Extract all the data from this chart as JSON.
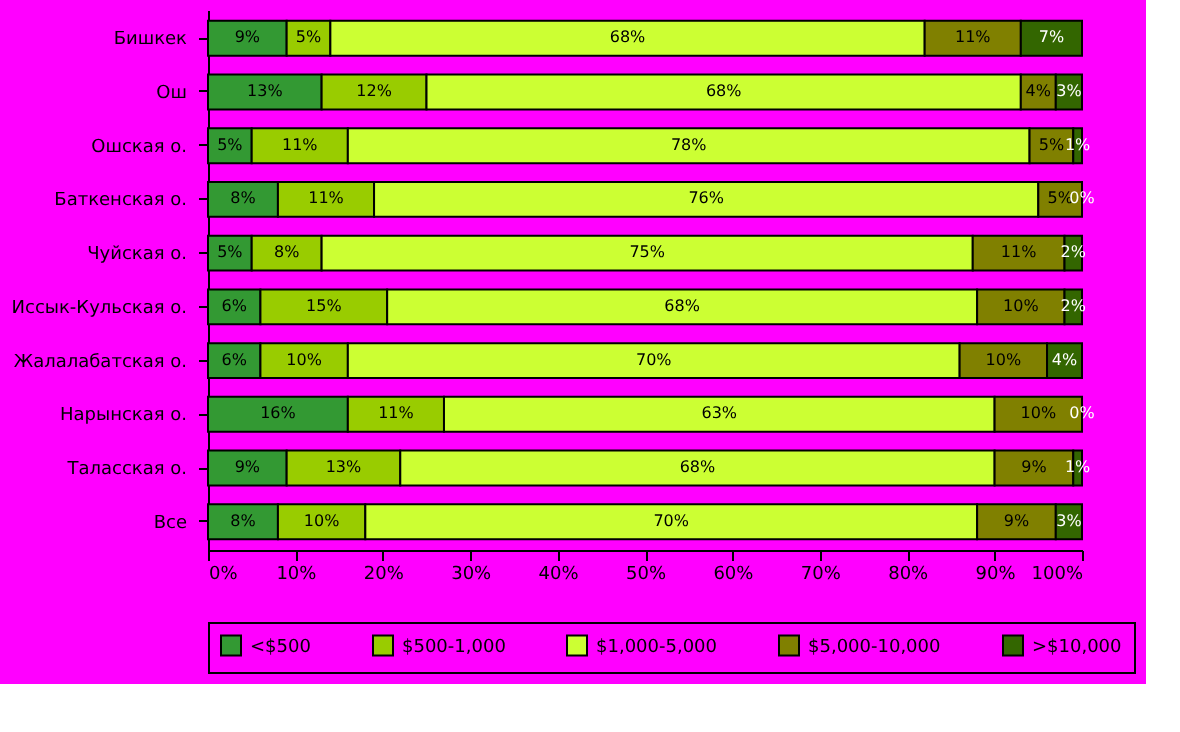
{
  "chart_data": {
    "type": "bar",
    "orientation": "horizontal",
    "stacked": true,
    "legend": "bottom",
    "grid": false,
    "categories": [
      "Бишкек",
      "Ош",
      "Ошская о.",
      "Баткенская о.",
      "Чуйская о.",
      "Иссык-Кульская о.",
      "Жалалабатская о.",
      "Нарынская о.",
      "Таласская о.",
      "Все"
    ],
    "series": [
      {
        "name": "<$500",
        "color": "#339933",
        "values": [
          9,
          13,
          5,
          8,
          5,
          6,
          6,
          16,
          9,
          8
        ],
        "value_labels": [
          "9%",
          "13%",
          "5%",
          "8%",
          "5%",
          "6%",
          "6%",
          "16%",
          "9%",
          "8%"
        ]
      },
      {
        "name": "$500-1,000",
        "color": "#99cc00",
        "values": [
          5,
          12,
          11,
          11,
          8,
          14.5,
          10,
          11,
          13,
          10
        ],
        "value_labels": [
          "5%",
          "12%",
          "11%",
          "11%",
          "8%",
          "15%",
          "10%",
          "11%",
          "13%",
          "10%"
        ]
      },
      {
        "name": "$1,000-5,000",
        "color": "#ccff33",
        "values": [
          68,
          68,
          78,
          76,
          74.5,
          67.5,
          70,
          63,
          68,
          70
        ],
        "value_labels": [
          "68%",
          "68%",
          "78%",
          "76%",
          "75%",
          "68%",
          "70%",
          "63%",
          "68%",
          "70%"
        ]
      },
      {
        "name": "$5,000-10,000",
        "color": "#808000",
        "values": [
          11,
          4,
          5,
          5,
          10.5,
          10,
          10,
          10,
          9,
          9
        ],
        "value_labels": [
          "11%",
          "4%",
          "5%",
          "5%",
          "11%",
          "10%",
          "10%",
          "10%",
          "9%",
          "9%"
        ]
      },
      {
        "name": ">$10,000",
        "color": "#336600",
        "values": [
          7,
          3,
          1,
          0,
          2,
          2,
          4,
          0,
          1,
          3
        ],
        "value_labels": [
          "7%",
          "3%",
          "1%",
          "0%",
          "2%",
          "2%",
          "4%",
          "0%",
          "1%",
          "3%"
        ]
      }
    ],
    "xlim": [
      0,
      100
    ],
    "xticks": [
      {
        "value": 0,
        "label": "0%"
      },
      {
        "value": 10,
        "label": "10%"
      },
      {
        "value": 20,
        "label": "20%"
      },
      {
        "value": 30,
        "label": "30%"
      },
      {
        "value": 40,
        "label": "40%"
      },
      {
        "value": 50,
        "label": "50%"
      },
      {
        "value": 60,
        "label": "60%"
      },
      {
        "value": 70,
        "label": "70%"
      },
      {
        "value": 80,
        "label": "80%"
      },
      {
        "value": 90,
        "label": "90%"
      },
      {
        "value": 100,
        "label": "100%"
      }
    ]
  }
}
